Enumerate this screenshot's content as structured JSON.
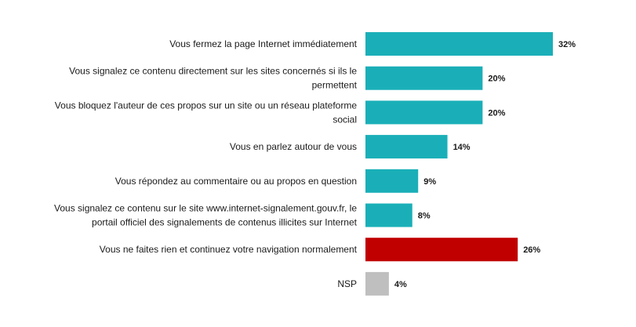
{
  "chart_data": {
    "type": "bar",
    "orientation": "horizontal",
    "title": "",
    "xlabel": "",
    "ylabel": "",
    "grid": false,
    "xlim": [
      0,
      32
    ],
    "categories": [
      "Vous fermez la page Internet immédiatement",
      "Vous signalez ce contenu directement sur les sites concernés si ils le permettent",
      "Vous bloquez l'auteur de ces propos sur un site ou un réseau plateforme social",
      "Vous en parlez autour de vous",
      "Vous répondez au commentaire ou au propos en question",
      "Vous signalez ce contenu sur le site www.internet-signalement.gouv.fr, le portail officiel des signalements de contenus illicites sur Internet",
      "Vous ne faites rien et continuez votre navigation normalement",
      "NSP"
    ],
    "category_lines": [
      [
        "Vous fermez la page Internet immédiatement"
      ],
      [
        "Vous signalez ce contenu directement sur les sites concernés si ils le",
        "permettent"
      ],
      [
        "Vous bloquez l'auteur de ces propos sur un site ou un réseau plateforme",
        "social"
      ],
      [
        "Vous en parlez autour de vous"
      ],
      [
        "Vous répondez au commentaire ou au propos en question"
      ],
      [
        "Vous signalez ce contenu sur le site www.internet-signalement.gouv.fr, le",
        "portail officiel des signalements de contenus illicites sur Internet"
      ],
      [
        "Vous ne faites rien et continuez votre navigation normalement"
      ],
      [
        "NSP"
      ]
    ],
    "values": [
      32,
      20,
      20,
      14,
      9,
      8,
      26,
      4
    ],
    "value_labels": [
      "32%",
      "20%",
      "20%",
      "14%",
      "9%",
      "8%",
      "26%",
      "4%"
    ],
    "colors": [
      "#1aafb8",
      "#1aafb8",
      "#1aafb8",
      "#1aafb8",
      "#1aafb8",
      "#1aafb8",
      "#c00000",
      "#bfbfbf"
    ]
  }
}
